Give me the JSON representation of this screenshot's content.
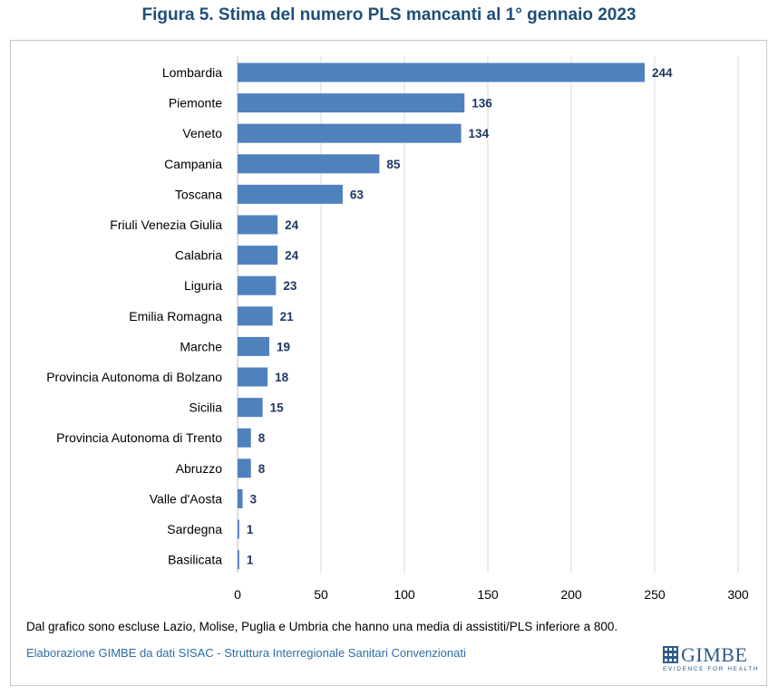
{
  "title": "Figura 5. Stima del numero PLS mancanti al 1° gennaio 2023",
  "note": "Dal grafico sono escluse Lazio, Molise, Puglia e Umbria che hanno una media di assistiti/PLS inferiore a 800.",
  "source": "Elaborazione GIMBE da dati SISAC - Struttura Interregionale Sanitari Convenzionati",
  "logo": {
    "name": "GIMBE",
    "tagline": "EVIDENCE FOR HEALTH"
  },
  "colors": {
    "bar": "#4f81bd",
    "label": "#1f3864",
    "title": "#1f4e79",
    "grid": "#d9d9d9"
  },
  "chart_data": {
    "type": "bar",
    "orientation": "horizontal",
    "title": "Figura 5. Stima del numero PLS mancanti al 1° gennaio 2023",
    "xlabel": "",
    "ylabel": "",
    "xlim": [
      0,
      300
    ],
    "xticks": [
      0,
      50,
      100,
      150,
      200,
      250,
      300
    ],
    "grid": true,
    "categories": [
      "Lombardia",
      "Piemonte",
      "Veneto",
      "Campania",
      "Toscana",
      "Friuli Venezia Giulia",
      "Calabria",
      "Liguria",
      "Emilia Romagna",
      "Marche",
      "Provincia Autonoma di Bolzano",
      "Sicilia",
      "Provincia Autonoma di Trento",
      "Abruzzo",
      "Valle d'Aosta",
      "Sardegna",
      "Basilicata"
    ],
    "values": [
      244,
      136,
      134,
      85,
      63,
      24,
      24,
      23,
      21,
      19,
      18,
      15,
      8,
      8,
      3,
      1,
      1
    ]
  }
}
